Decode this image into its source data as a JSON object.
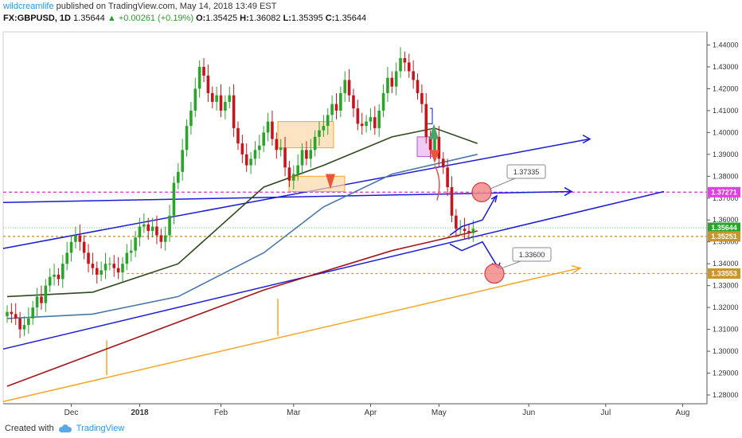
{
  "header": {
    "author": "wildcreamlife",
    "published": "published on TradingView.com, May 14, 2018 13:49 EST",
    "symbol": "FX:GBPUSD, 1D",
    "last": "1.35644",
    "change": "+0.00261 (+0.19%)",
    "open_label": "O:",
    "open": "1.35425",
    "high_label": "H:",
    "high": "1.36082",
    "low_label": "L:",
    "low": "1.35395",
    "close_label": "C:",
    "close": "1.35644"
  },
  "footer": {
    "created_with": "Created with",
    "brand": "TradingView"
  },
  "colors": {
    "up": "#2aa52a",
    "down": "#c4161c",
    "ma_short": "#2e4a1e",
    "ma_mid": "#4a78a8",
    "ma_long": "#a3161a",
    "trend_blue": "#1b1bd6",
    "trend_orange": "#f5a623",
    "level_pink": "#e040e0",
    "level_gold": "#c9962a"
  },
  "chart_data": {
    "type": "candlestick",
    "symbol": "GBPUSD",
    "timeframe": "1D",
    "ylim": [
      1.276,
      1.446
    ],
    "yticks": [
      "1.44000",
      "1.43000",
      "1.42000",
      "1.41000",
      "1.40000",
      "1.39000",
      "1.38000",
      "1.37000",
      "1.36000",
      "1.35000",
      "1.34000",
      "1.33000",
      "1.32000",
      "1.31000",
      "1.30000",
      "1.29000",
      "1.28000"
    ],
    "xticks": [
      "Dec",
      "2018",
      "Feb",
      "Mar",
      "Apr",
      "May",
      "Jun",
      "Jul",
      "Aug"
    ],
    "price_labels": [
      {
        "text": "1.37271",
        "value": 1.37271,
        "color": "#e040e0"
      },
      {
        "text": "1.35644",
        "value": 1.35644,
        "color": "#2aa52a"
      },
      {
        "text": "1.35251",
        "value": 1.35251,
        "color": "#c9962a"
      },
      {
        "text": "1.33553",
        "value": 1.33553,
        "color": "#c9962a"
      }
    ],
    "annotations": [
      {
        "text": "1.37335",
        "target": 1.37335
      },
      {
        "text": "1.33600",
        "target": 1.336
      }
    ],
    "closes": [
      1.318,
      1.317,
      1.315,
      1.31,
      1.312,
      1.315,
      1.32,
      1.325,
      1.322,
      1.33,
      1.334,
      1.335,
      1.333,
      1.34,
      1.345,
      1.35,
      1.353,
      1.35,
      1.345,
      1.34,
      1.338,
      1.335,
      1.337,
      1.34,
      1.34,
      1.338,
      1.336,
      1.34,
      1.345,
      1.346,
      1.352,
      1.357,
      1.358,
      1.355,
      1.357,
      1.353,
      1.35,
      1.353,
      1.362,
      1.377,
      1.382,
      1.392,
      1.403,
      1.41,
      1.42,
      1.43,
      1.426,
      1.418,
      1.414,
      1.417,
      1.41,
      1.414,
      1.417,
      1.402,
      1.395,
      1.39,
      1.385,
      1.388,
      1.392,
      1.394,
      1.4,
      1.405,
      1.397,
      1.392,
      1.393,
      1.384,
      1.378,
      1.381,
      1.385,
      1.392,
      1.388,
      1.392,
      1.398,
      1.401,
      1.403,
      1.408,
      1.413,
      1.41,
      1.418,
      1.424,
      1.417,
      1.411,
      1.404,
      1.403,
      1.405,
      1.407,
      1.402,
      1.41,
      1.418,
      1.425,
      1.421,
      1.428,
      1.434,
      1.432,
      1.428,
      1.424,
      1.418,
      1.413,
      1.398,
      1.392,
      1.398,
      1.388,
      1.384,
      1.375,
      1.362,
      1.356,
      1.356,
      1.355,
      1.354,
      1.356
    ],
    "ma_short": [
      [
        0,
        1.325
      ],
      [
        20,
        1.327
      ],
      [
        40,
        1.34
      ],
      [
        60,
        1.375
      ],
      [
        74,
        1.385
      ],
      [
        90,
        1.398
      ],
      [
        100,
        1.402
      ],
      [
        110,
        1.395
      ]
    ],
    "ma_mid": [
      [
        0,
        1.315
      ],
      [
        20,
        1.317
      ],
      [
        40,
        1.325
      ],
      [
        60,
        1.345
      ],
      [
        74,
        1.366
      ],
      [
        90,
        1.381
      ],
      [
        110,
        1.39
      ]
    ],
    "ma_long": [
      [
        0,
        1.284
      ],
      [
        30,
        1.306
      ],
      [
        60,
        1.328
      ],
      [
        90,
        1.346
      ],
      [
        110,
        1.355
      ]
    ]
  }
}
